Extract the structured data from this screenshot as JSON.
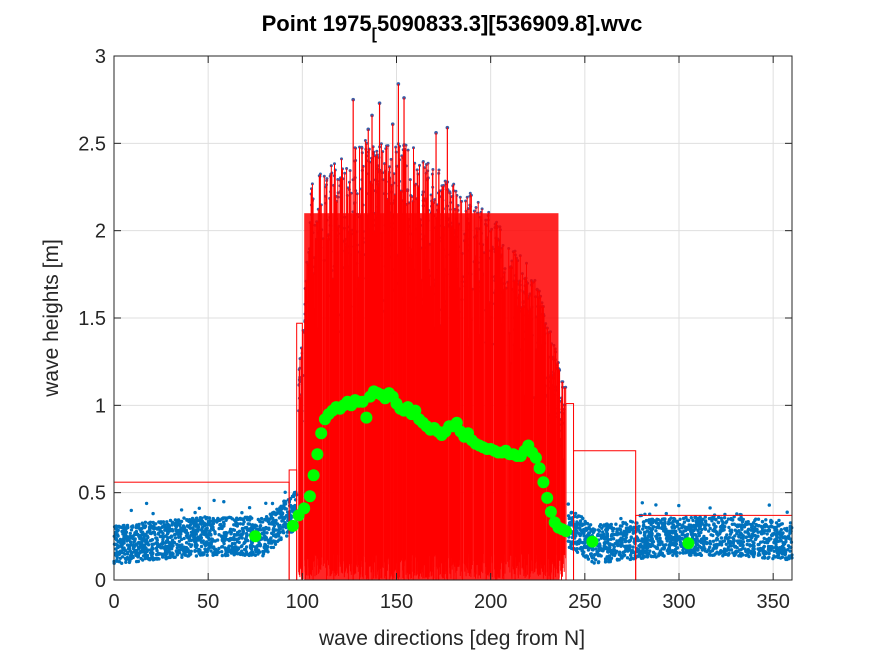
{
  "chart_data": {
    "type": "scatter",
    "title_part1": "Point 1975",
    "title_subscript": "[",
    "title_part2": "5090833.3][536909.8].wvc",
    "xlabel": "wave directions [deg from N]",
    "ylabel": "wave heights [m]",
    "xlim": [
      0,
      360
    ],
    "ylim": [
      0,
      3
    ],
    "xticks": [
      0,
      50,
      100,
      150,
      200,
      250,
      300,
      350
    ],
    "yticks": [
      0,
      0.5,
      1,
      1.5,
      2,
      2.5,
      3
    ],
    "ytick_labels": [
      "0",
      "0.5",
      "1",
      "1.5",
      "2",
      "2.5",
      "3"
    ],
    "grid": true,
    "colors": {
      "raw": "#0072BD",
      "envelope": "#FF0000",
      "mean": "#00FF00",
      "axis": "#262626",
      "grid": "#DFDFDF"
    },
    "series": [
      {
        "kind": "scatter",
        "description_x_min": 0,
        "description_x_max": 360,
        "low_band": {
          "x_start": 0,
          "x_end": 92,
          "y_min": 0.1,
          "y_max": 0.4
        },
        "high_region": {
          "x_start": 98,
          "x_end": 240,
          "y_peak": 2.84
        }
      },
      {
        "kind": "step-envelope",
        "bins": [
          {
            "x0": 0,
            "x1": 93,
            "y": 0.56
          },
          {
            "x0": 93,
            "x1": 97,
            "y": 0.63
          },
          {
            "x0": 97,
            "x1": 100,
            "y": 1.47
          },
          {
            "x0": 240,
            "x1": 244,
            "y": 1.01
          },
          {
            "x0": 244,
            "x1": 277,
            "y": 0.74
          },
          {
            "x0": 277,
            "x1": 360,
            "y": 0.37
          }
        ]
      },
      {
        "kind": "mean-points",
        "x": [
          75,
          95,
          98,
          101,
          104,
          106,
          108,
          110,
          112,
          114,
          116,
          118,
          120,
          122,
          124,
          126,
          128,
          130,
          132,
          134,
          136,
          138,
          140,
          142,
          144,
          146,
          148,
          150,
          152,
          154,
          156,
          158,
          160,
          162,
          164,
          166,
          168,
          170,
          172,
          174,
          176,
          178,
          180,
          182,
          184,
          186,
          188,
          190,
          192,
          194,
          196,
          198,
          200,
          202,
          204,
          206,
          208,
          210,
          212,
          214,
          216,
          218,
          220,
          222,
          224,
          226,
          228,
          230,
          232,
          234,
          236,
          238,
          240,
          254,
          305
        ],
        "y": [
          0.25,
          0.31,
          0.37,
          0.41,
          0.48,
          0.6,
          0.72,
          0.84,
          0.92,
          0.95,
          0.97,
          0.99,
          0.98,
          1.0,
          1.02,
          1.0,
          1.03,
          1.02,
          1.02,
          0.93,
          1.05,
          1.08,
          1.07,
          1.06,
          1.04,
          1.07,
          1.05,
          1.01,
          0.98,
          0.97,
          0.99,
          0.95,
          0.97,
          0.92,
          0.9,
          0.88,
          0.86,
          0.87,
          0.85,
          0.83,
          0.85,
          0.88,
          0.88,
          0.9,
          0.85,
          0.82,
          0.84,
          0.8,
          0.78,
          0.77,
          0.76,
          0.75,
          0.75,
          0.74,
          0.73,
          0.73,
          0.74,
          0.72,
          0.72,
          0.71,
          0.71,
          0.74,
          0.77,
          0.73,
          0.7,
          0.64,
          0.56,
          0.47,
          0.39,
          0.33,
          0.3,
          0.29,
          0.28,
          0.22,
          0.21
        ]
      }
    ]
  }
}
